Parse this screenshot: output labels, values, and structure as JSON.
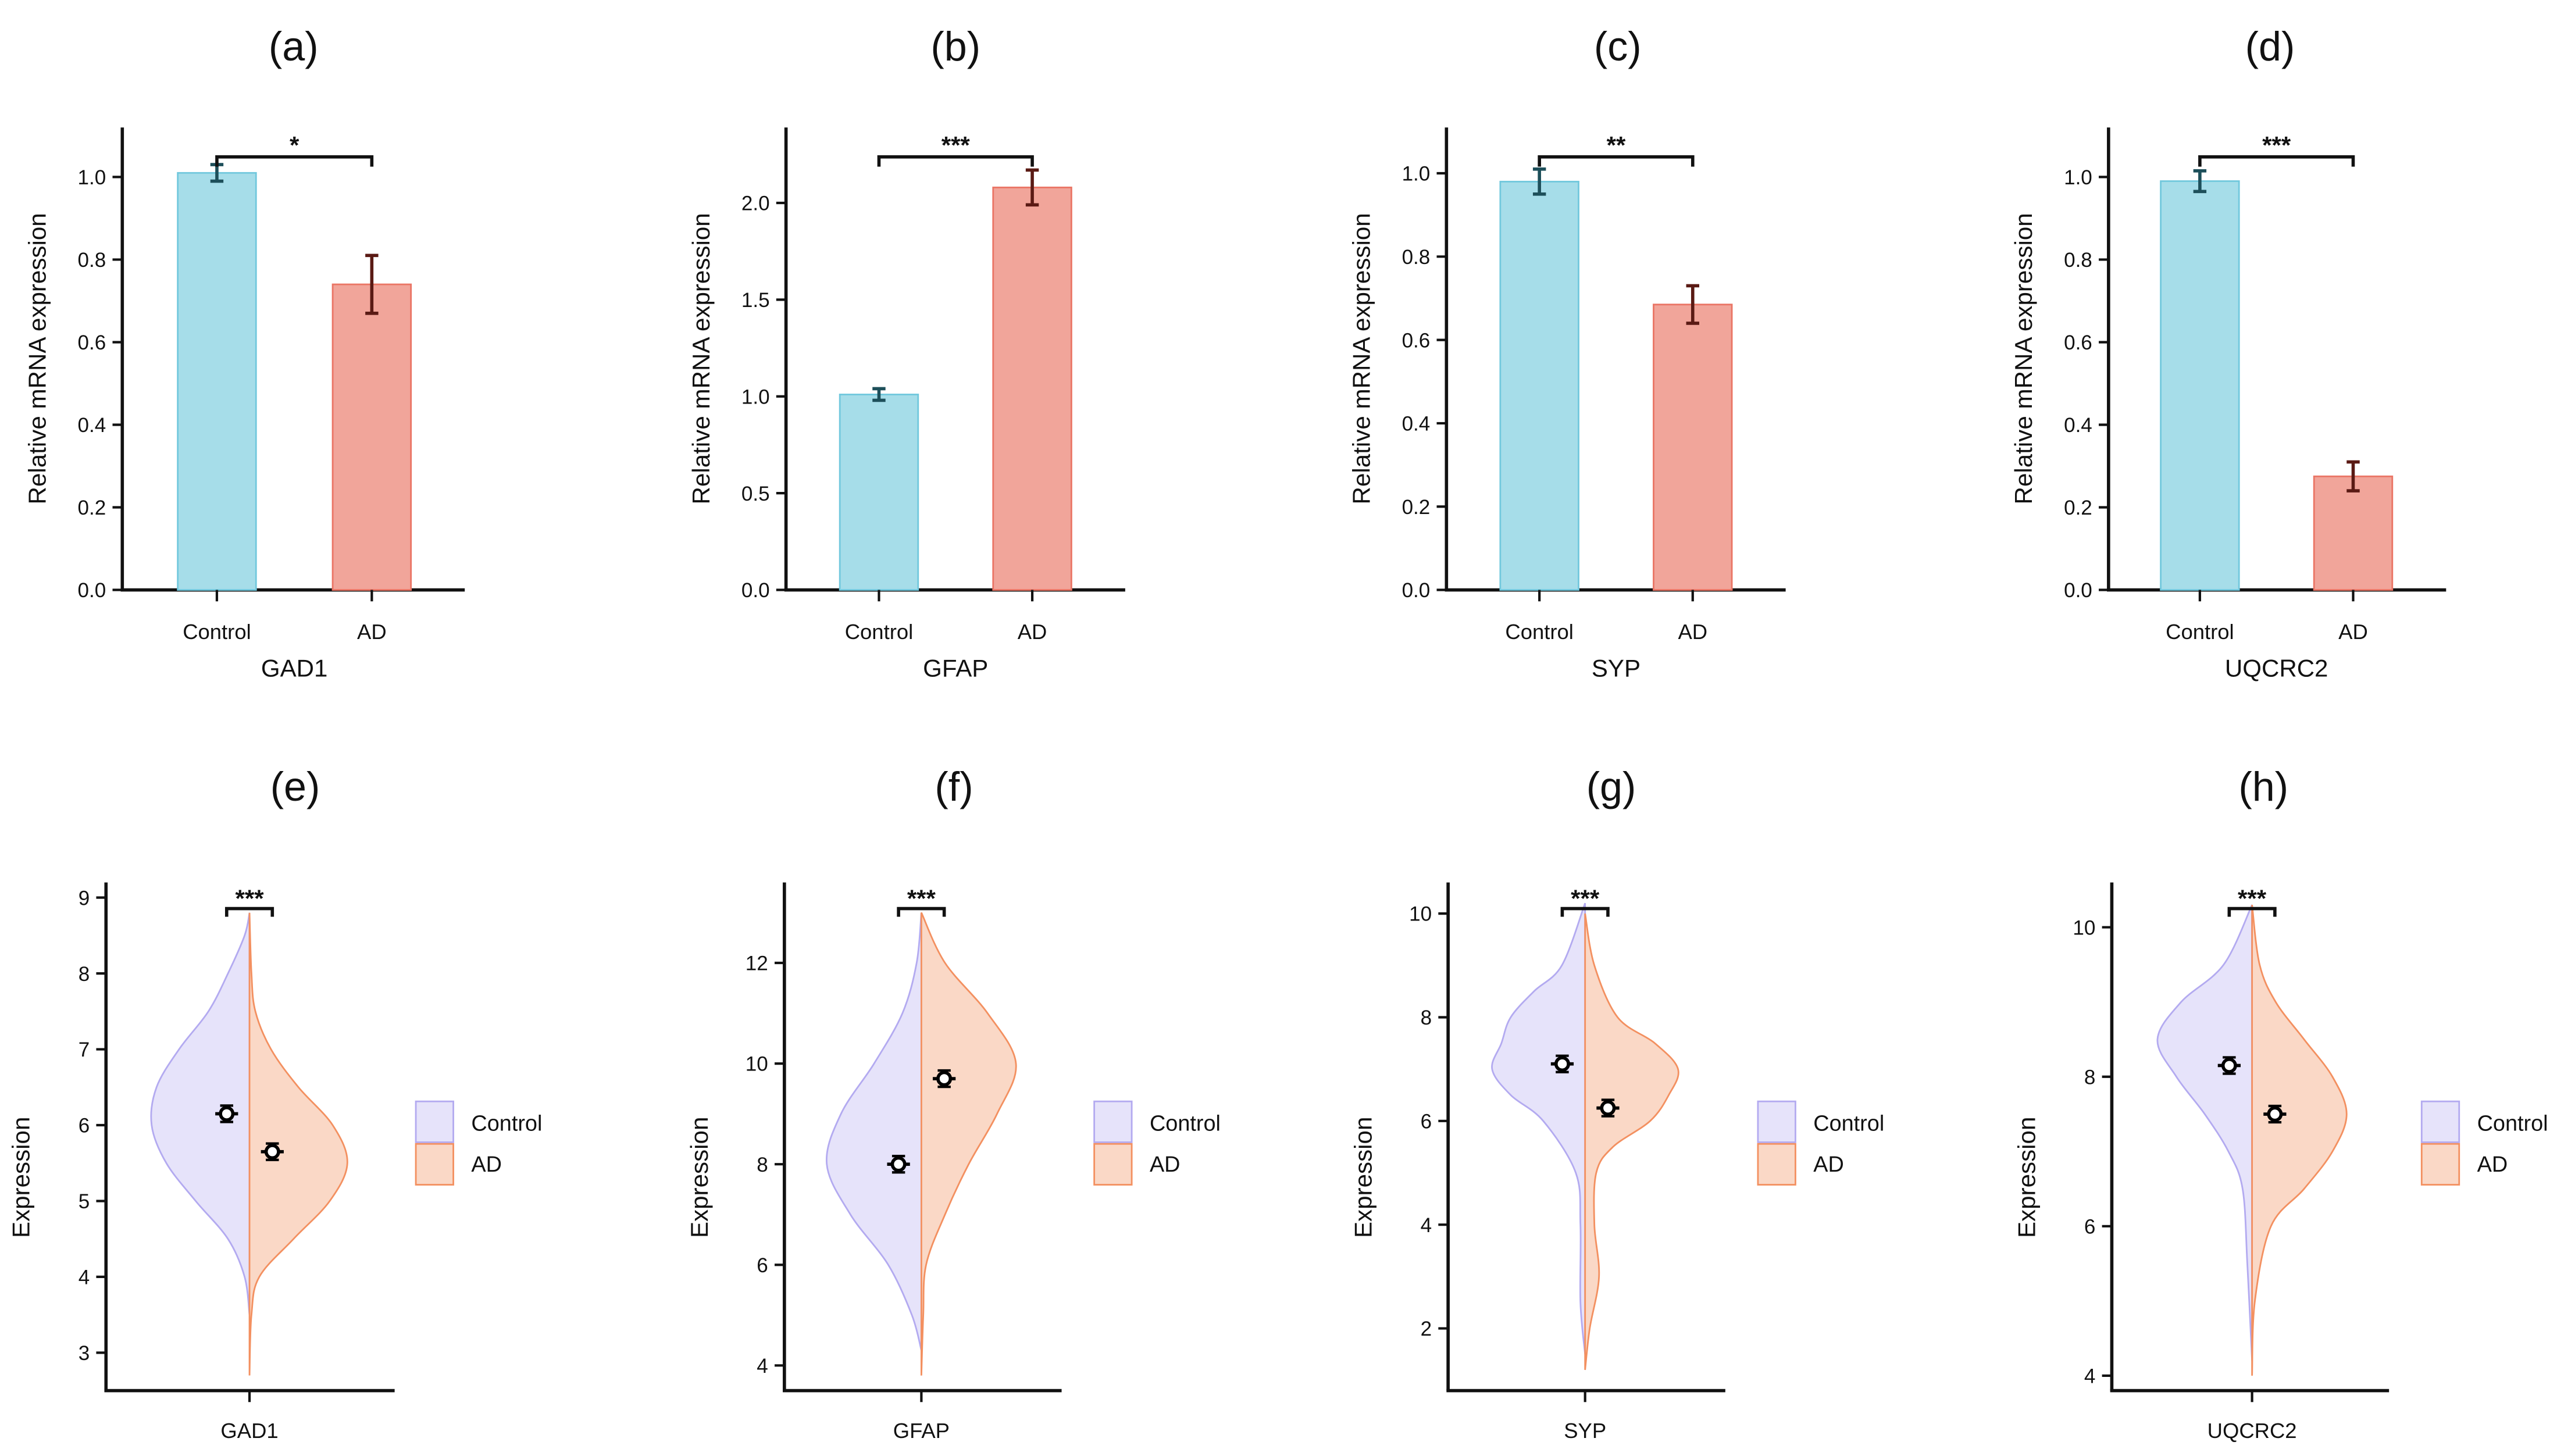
{
  "colors": {
    "control_bar": "#a6dde9",
    "control_bar_edge": "#72c8dd",
    "ad_bar": "#f1a59a",
    "ad_bar_edge": "#ea7565",
    "control_violin": "#e6e3fa",
    "control_violin_edge": "#b3aaf0",
    "ad_violin": "#fad8c6",
    "ad_violin_edge": "#f39060",
    "axis": "#111111"
  },
  "chart_data": [
    {
      "panel": "(a)",
      "type": "bar",
      "xlabel": "GAD1",
      "ylabel": "Relative mRNA expression",
      "categories": [
        "Control",
        "AD"
      ],
      "values": [
        1.01,
        0.74
      ],
      "errors": [
        0.02,
        0.07
      ],
      "ylim": [
        0,
        1.12
      ],
      "yticks": [
        "0.0",
        "0.2",
        "0.4",
        "0.6",
        "0.8",
        "1.0"
      ],
      "significance": "*"
    },
    {
      "panel": "(b)",
      "type": "bar",
      "xlabel": "GFAP",
      "ylabel": "Relative mRNA expression",
      "categories": [
        "Control",
        "AD"
      ],
      "values": [
        1.01,
        2.08
      ],
      "errors": [
        0.03,
        0.09
      ],
      "ylim": [
        0,
        2.39
      ],
      "yticks": [
        "0.0",
        "0.5",
        "1.0",
        "1.5",
        "2.0"
      ],
      "significance": "***"
    },
    {
      "panel": "(c)",
      "type": "bar",
      "xlabel": "SYP",
      "ylabel": "Relative mRNA expression",
      "categories": [
        "Control",
        "AD"
      ],
      "values": [
        0.98,
        0.685
      ],
      "errors": [
        0.03,
        0.045
      ],
      "ylim": [
        0,
        1.11
      ],
      "yticks": [
        "0.0",
        "0.2",
        "0.4",
        "0.6",
        "0.8",
        "1.0"
      ],
      "significance": "**"
    },
    {
      "panel": "(d)",
      "type": "bar",
      "xlabel": "UQCRC2",
      "ylabel": "Relative mRNA expression",
      "categories": [
        "Control",
        "AD"
      ],
      "values": [
        0.99,
        0.275
      ],
      "errors": [
        0.025,
        0.035
      ],
      "ylim": [
        0,
        1.12
      ],
      "yticks": [
        "0.0",
        "0.2",
        "0.4",
        "0.6",
        "0.8",
        "1.0"
      ],
      "significance": "***"
    },
    {
      "panel": "(e)",
      "type": "violin",
      "xlabel": "GAD1",
      "ylabel": "Expression",
      "legend": [
        "Control",
        "AD"
      ],
      "legend_position": "right",
      "ylim": [
        2.5,
        9.2
      ],
      "yticks": [
        "3",
        "4",
        "5",
        "6",
        "7",
        "8",
        "9"
      ],
      "significance": "***",
      "means": [
        6.15,
        5.65
      ],
      "mean_errors": [
        0.08,
        0.06
      ],
      "control_density": [
        [
          3.5,
          0
        ],
        [
          4,
          0.05
        ],
        [
          4.5,
          0.22
        ],
        [
          5,
          0.55
        ],
        [
          5.5,
          0.85
        ],
        [
          6,
          1
        ],
        [
          6.5,
          0.95
        ],
        [
          7,
          0.72
        ],
        [
          7.5,
          0.42
        ],
        [
          8,
          0.22
        ],
        [
          8.5,
          0.05
        ],
        [
          8.8,
          0
        ]
      ],
      "ad_density": [
        [
          2.7,
          0
        ],
        [
          3.5,
          0.02
        ],
        [
          4,
          0.1
        ],
        [
          4.5,
          0.45
        ],
        [
          5,
          0.82
        ],
        [
          5.5,
          1
        ],
        [
          6,
          0.85
        ],
        [
          6.5,
          0.5
        ],
        [
          7,
          0.22
        ],
        [
          7.5,
          0.06
        ],
        [
          8,
          0.02
        ],
        [
          8.8,
          0
        ]
      ]
    },
    {
      "panel": "(f)",
      "type": "violin",
      "xlabel": "GFAP",
      "ylabel": "Expression",
      "legend": [
        "Control",
        "AD"
      ],
      "legend_position": "right",
      "ylim": [
        3.5,
        13.6
      ],
      "yticks": [
        "4",
        "6",
        "8",
        "10",
        "12"
      ],
      "significance": "***",
      "means": [
        8.0,
        9.7
      ],
      "mean_errors": [
        0.08,
        0.08
      ],
      "control_density": [
        [
          4.3,
          0
        ],
        [
          5,
          0.1
        ],
        [
          6,
          0.35
        ],
        [
          7,
          0.75
        ],
        [
          8,
          1
        ],
        [
          9,
          0.85
        ],
        [
          10,
          0.5
        ],
        [
          11,
          0.2
        ],
        [
          12,
          0.05
        ],
        [
          13,
          0
        ]
      ],
      "ad_density": [
        [
          3.8,
          0
        ],
        [
          5,
          0.02
        ],
        [
          6,
          0.05
        ],
        [
          7,
          0.25
        ],
        [
          8,
          0.5
        ],
        [
          9,
          0.8
        ],
        [
          10,
          1
        ],
        [
          11,
          0.7
        ],
        [
          12,
          0.25
        ],
        [
          13,
          0
        ]
      ]
    },
    {
      "panel": "(g)",
      "type": "violin",
      "xlabel": "SYP",
      "ylabel": "Expression",
      "legend": [
        "Control",
        "AD"
      ],
      "legend_position": "right",
      "ylim": [
        0.8,
        10.6
      ],
      "yticks": [
        "2",
        "4",
        "6",
        "8",
        "10"
      ],
      "significance": "***",
      "means": [
        7.1,
        6.25
      ],
      "mean_errors": [
        0.08,
        0.08
      ],
      "control_density": [
        [
          1.5,
          0
        ],
        [
          2.5,
          0.05
        ],
        [
          4,
          0.05
        ],
        [
          5,
          0.1
        ],
        [
          6,
          0.45
        ],
        [
          6.5,
          0.8
        ],
        [
          7,
          1
        ],
        [
          7.5,
          0.9
        ],
        [
          8,
          0.8
        ],
        [
          8.5,
          0.55
        ],
        [
          9,
          0.25
        ],
        [
          10.2,
          0
        ]
      ],
      "ad_density": [
        [
          1.2,
          0
        ],
        [
          2,
          0.05
        ],
        [
          3,
          0.15
        ],
        [
          4,
          0.1
        ],
        [
          5,
          0.12
        ],
        [
          5.5,
          0.3
        ],
        [
          6,
          0.7
        ],
        [
          6.5,
          0.9
        ],
        [
          7,
          1
        ],
        [
          7.5,
          0.75
        ],
        [
          8,
          0.35
        ],
        [
          9,
          0.1
        ],
        [
          10,
          0
        ]
      ]
    },
    {
      "panel": "(h)",
      "type": "violin",
      "xlabel": "UQCRC2",
      "ylabel": "Expression",
      "legend": [
        "Control",
        "AD"
      ],
      "legend_position": "right",
      "ylim": [
        3.8,
        10.6
      ],
      "yticks": [
        "4",
        "6",
        "8",
        "10"
      ],
      "significance": "***",
      "means": [
        8.15,
        7.5
      ],
      "mean_errors": [
        0.06,
        0.06
      ],
      "control_density": [
        [
          4.2,
          0
        ],
        [
          5.5,
          0.05
        ],
        [
          6.5,
          0.1
        ],
        [
          7,
          0.25
        ],
        [
          7.5,
          0.5
        ],
        [
          8,
          0.8
        ],
        [
          8.5,
          1
        ],
        [
          9,
          0.75
        ],
        [
          9.5,
          0.3
        ],
        [
          10.3,
          0
        ]
      ],
      "ad_density": [
        [
          4,
          0
        ],
        [
          5,
          0.03
        ],
        [
          6,
          0.2
        ],
        [
          6.5,
          0.55
        ],
        [
          7,
          0.85
        ],
        [
          7.5,
          1
        ],
        [
          8,
          0.85
        ],
        [
          8.5,
          0.55
        ],
        [
          9,
          0.25
        ],
        [
          9.5,
          0.08
        ],
        [
          10.3,
          0
        ]
      ]
    }
  ]
}
